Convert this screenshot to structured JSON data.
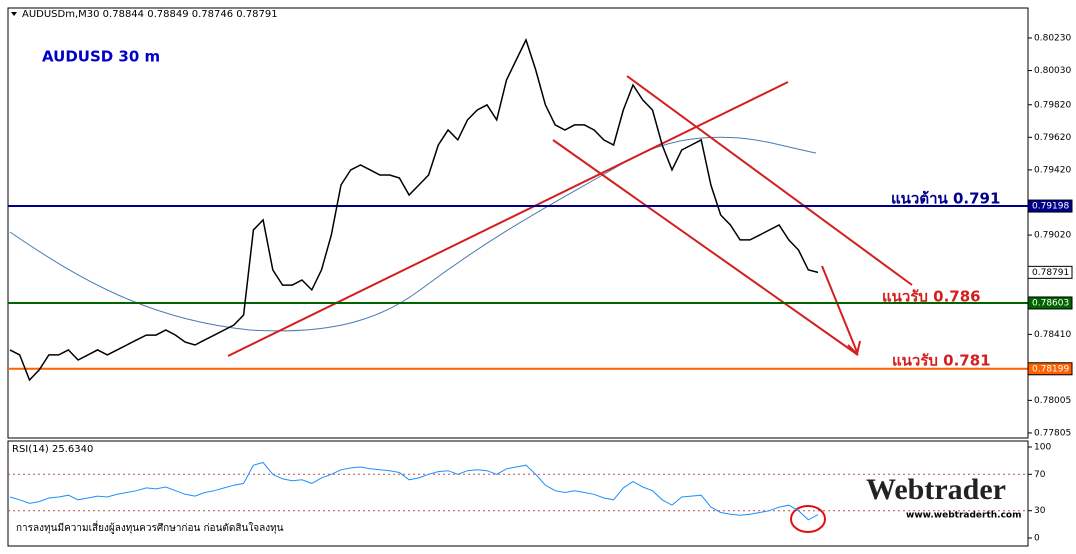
{
  "chart_data": [
    {
      "type": "line",
      "header": "AUDUSDm,M30 0.78844 0.78849 0.78746 0.78791",
      "title": "AUDUSD 30 m",
      "color": "#000000",
      "values": [
        0.78315,
        0.78284,
        0.7813,
        0.78192,
        0.78284,
        0.78284,
        0.78315,
        0.78253,
        0.78284,
        0.78315,
        0.78284,
        0.78315,
        0.78345,
        0.78376,
        0.78406,
        0.78406,
        0.78437,
        0.78406,
        0.78363,
        0.78345,
        0.78376,
        0.78406,
        0.78437,
        0.78468,
        0.78529,
        0.79051,
        0.79113,
        0.78806,
        0.78713,
        0.78713,
        0.78744,
        0.78683,
        0.78806,
        0.7902,
        0.79327,
        0.7942,
        0.7945,
        0.7942,
        0.79389,
        0.79389,
        0.7937,
        0.79266,
        0.79327,
        0.79389,
        0.79573,
        0.79665,
        0.79604,
        0.79727,
        0.79788,
        0.79819,
        0.79727,
        0.79972,
        0.80095,
        0.80218,
        0.80034,
        0.79819,
        0.79696,
        0.79665,
        0.79696,
        0.79696,
        0.79665,
        0.79604,
        0.79573,
        0.79788,
        0.79941,
        0.79849,
        0.79788,
        0.79573,
        0.7942,
        0.79542,
        0.79573,
        0.79604,
        0.79327,
        0.79143,
        0.79082,
        0.7899,
        0.7899,
        0.7902,
        0.79051,
        0.79082,
        0.7899,
        0.78928,
        0.78806,
        0.78791
      ],
      "ylim": [
        0.77774,
        0.80414
      ],
      "yticks": [
        {
          "value": 0.8023,
          "label": "0.80230"
        },
        {
          "value": 0.8003,
          "label": "0.80030"
        },
        {
          "value": 0.7982,
          "label": "0.79820"
        },
        {
          "value": 0.7962,
          "label": "0.79620"
        },
        {
          "value": 0.7942,
          "label": "0.79420"
        },
        {
          "value": 0.7902,
          "label": "0.79020"
        },
        {
          "value": 0.7841,
          "label": "0.78410"
        },
        {
          "value": 0.78005,
          "label": "0.78005"
        },
        {
          "value": 0.77805,
          "label": "0.77805"
        }
      ],
      "levels": [
        {
          "value": 0.79198,
          "color": "#00008b"
        },
        {
          "value": 0.78791,
          "color": "#ffffff"
        },
        {
          "value": 0.78603,
          "color": "#006400"
        },
        {
          "value": 0.78199,
          "color": "#ff6000"
        }
      ],
      "annotations": [
        "แนวต้าน 0.791",
        "แนวรับ 0.786",
        "แนวรับ 0.781"
      ],
      "disclaimer": "การลงทุนมีความเสี่ยงผู้ลงทุนควรศึกษาก่อน ก่อนตัดสินใจลงทุน",
      "logo": "Webtrader",
      "website": "www.webtraderth.com"
    },
    {
      "type": "line",
      "title": "RSI(14) 25.6340",
      "color": "#1e90ff",
      "values": [
        45,
        42,
        38,
        40,
        44,
        45,
        47,
        42,
        44,
        46,
        45,
        48,
        50,
        52,
        55,
        54,
        56,
        52,
        48,
        46,
        50,
        52,
        55,
        58,
        60,
        80,
        83,
        70,
        65,
        63,
        64,
        60,
        66,
        70,
        75,
        77,
        78,
        76,
        75,
        74,
        72,
        64,
        66,
        70,
        73,
        74,
        70,
        74,
        75,
        74,
        70,
        76,
        78,
        80,
        70,
        58,
        52,
        50,
        52,
        50,
        48,
        44,
        42,
        55,
        62,
        56,
        52,
        42,
        36,
        45,
        46,
        47,
        34,
        28,
        26,
        25,
        26,
        28,
        30,
        34,
        36,
        30,
        20,
        25.634
      ],
      "ylim": [
        -8.8,
        106.6
      ],
      "yticks": [
        100,
        70,
        30,
        0
      ]
    }
  ]
}
